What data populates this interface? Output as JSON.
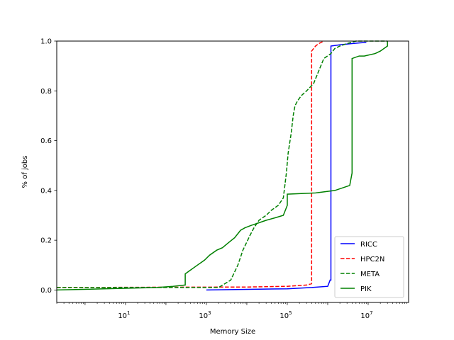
{
  "chart_data": {
    "type": "line",
    "title": "",
    "xlabel": "Memory Size",
    "ylabel": "% of jobs",
    "xscale": "log",
    "xlim_log10": [
      -0.7,
      8.0
    ],
    "ylim": [
      -0.05,
      1.0
    ],
    "x_ticks": [
      {
        "value": 10,
        "label_base": "10",
        "label_exp": "1"
      },
      {
        "value": 1000,
        "label_base": "10",
        "label_exp": "3"
      },
      {
        "value": 100000,
        "label_base": "10",
        "label_exp": "5"
      },
      {
        "value": 10000000,
        "label_base": "10",
        "label_exp": "7"
      }
    ],
    "y_ticks": [
      "0.0",
      "0.2",
      "0.4",
      "0.6",
      "0.8",
      "1.0"
    ],
    "legend_position": "bottom-right",
    "grid": false,
    "series": [
      {
        "name": "RICC",
        "color": "#0000ff",
        "style": "solid",
        "x": [
          1000,
          1000,
          100000,
          400000,
          1000000,
          1150000,
          1200000,
          1200000,
          2000000,
          4000000,
          9000000
        ],
        "y": [
          0.0,
          0.0,
          0.005,
          0.01,
          0.015,
          0.04,
          0.04,
          0.98,
          0.985,
          0.99,
          0.995
        ]
      },
      {
        "name": "HPC2N",
        "color": "#ff0000",
        "style": "dashed",
        "x": [
          0.2,
          10000,
          100000,
          300000,
          400000,
          400000,
          500000,
          600000,
          800000
        ],
        "y": [
          0.01,
          0.012,
          0.015,
          0.02,
          0.025,
          0.96,
          0.98,
          0.99,
          1.0
        ]
      },
      {
        "name": "META",
        "color": "#008000",
        "style": "dashed",
        "x": [
          0.2,
          2000,
          4000,
          6000,
          8000,
          12000,
          15000,
          20000,
          30000,
          40000,
          60000,
          80000,
          95000,
          105000,
          125000,
          140000,
          155000,
          180000,
          220000,
          300000,
          450000,
          600000,
          800000,
          1200000,
          1500000,
          2000000,
          3000000,
          5000000,
          30000000
        ],
        "y": [
          0.01,
          0.01,
          0.04,
          0.1,
          0.16,
          0.22,
          0.25,
          0.28,
          0.3,
          0.32,
          0.34,
          0.37,
          0.47,
          0.55,
          0.63,
          0.7,
          0.74,
          0.76,
          0.78,
          0.8,
          0.83,
          0.88,
          0.93,
          0.95,
          0.97,
          0.98,
          0.99,
          1.0,
          1.0
        ]
      },
      {
        "name": "PIK",
        "color": "#008000",
        "style": "solid",
        "x": [
          0.2,
          60,
          150,
          300,
          300,
          600,
          900,
          1200,
          1800,
          2500,
          3500,
          5000,
          7000,
          9000,
          13000,
          20000,
          30000,
          50000,
          80000,
          100000,
          100000,
          500000,
          1500000,
          3500000,
          4000000,
          4000000,
          6000000,
          8000000,
          15000000,
          20000000,
          30000000,
          30000000
        ],
        "y": [
          0.0,
          0.01,
          0.015,
          0.02,
          0.065,
          0.1,
          0.12,
          0.14,
          0.16,
          0.17,
          0.19,
          0.21,
          0.24,
          0.25,
          0.26,
          0.27,
          0.28,
          0.29,
          0.3,
          0.34,
          0.385,
          0.39,
          0.4,
          0.42,
          0.47,
          0.93,
          0.94,
          0.94,
          0.95,
          0.96,
          0.98,
          1.0
        ]
      }
    ]
  }
}
